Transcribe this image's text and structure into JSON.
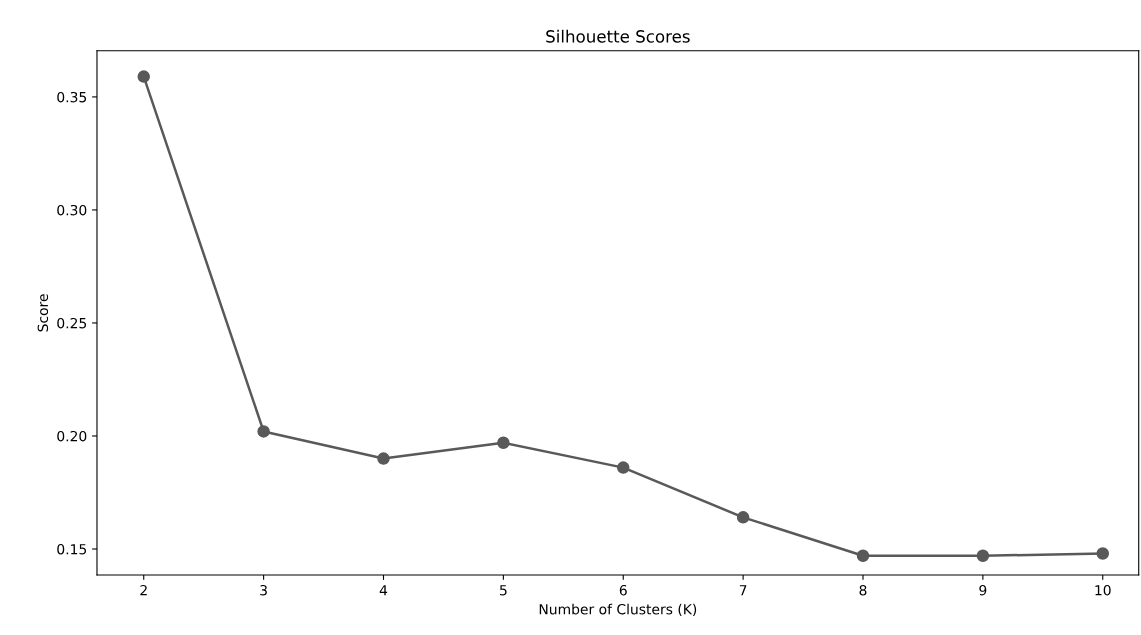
{
  "chart_data": {
    "type": "line",
    "title": "Silhouette Scores",
    "xlabel": "Number of Clusters (K)",
    "ylabel": "Score",
    "x": [
      2,
      3,
      4,
      5,
      6,
      7,
      8,
      9,
      10
    ],
    "series": [
      {
        "color": "#595959",
        "values": [
          0.359,
          0.202,
          0.19,
          0.197,
          0.186,
          0.164,
          0.147,
          0.147,
          0.148
        ]
      }
    ],
    "xlim": [
      1.61,
      10.3
    ],
    "ylim": [
      0.1385,
      0.3704
    ],
    "xticks": [
      2,
      3,
      4,
      5,
      6,
      7,
      8,
      9,
      10
    ],
    "yticks": [
      {
        "value": 0.15,
        "label": "0.15"
      },
      {
        "value": 0.2,
        "label": "0.20"
      },
      {
        "value": 0.25,
        "label": "0.25"
      },
      {
        "value": 0.3,
        "label": "0.30"
      },
      {
        "value": 0.35,
        "label": "0.35"
      }
    ],
    "marker": "circle",
    "line_style": "solid",
    "grid": false
  }
}
